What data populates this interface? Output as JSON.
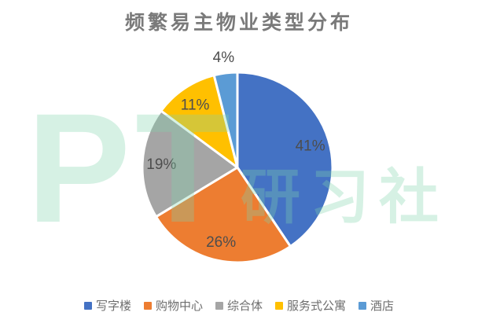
{
  "chart_data": {
    "type": "pie",
    "title": "频繁易主物业类型分布",
    "categories": [
      "写字楼",
      "购物中心",
      "综合体",
      "服务式公寓",
      "酒店"
    ],
    "values": [
      41,
      26,
      19,
      11,
      4
    ],
    "labels": [
      "41%",
      "26%",
      "19%",
      "11%",
      "4%"
    ],
    "colors": [
      "#4472C4",
      "#ED7D31",
      "#A5A5A5",
      "#FFC000",
      "#5B9BD5"
    ],
    "start_angle_deg": 0,
    "direction": "clockwise",
    "legend_position": "bottom",
    "title_color": "#7a7a7a",
    "label_color": "#4d4d4d",
    "slice_border_color": "#ffffff"
  },
  "watermark": {
    "left_text": "PT",
    "right_text": "研习社",
    "color": "rgba(127, 212, 172, 0.32)"
  }
}
